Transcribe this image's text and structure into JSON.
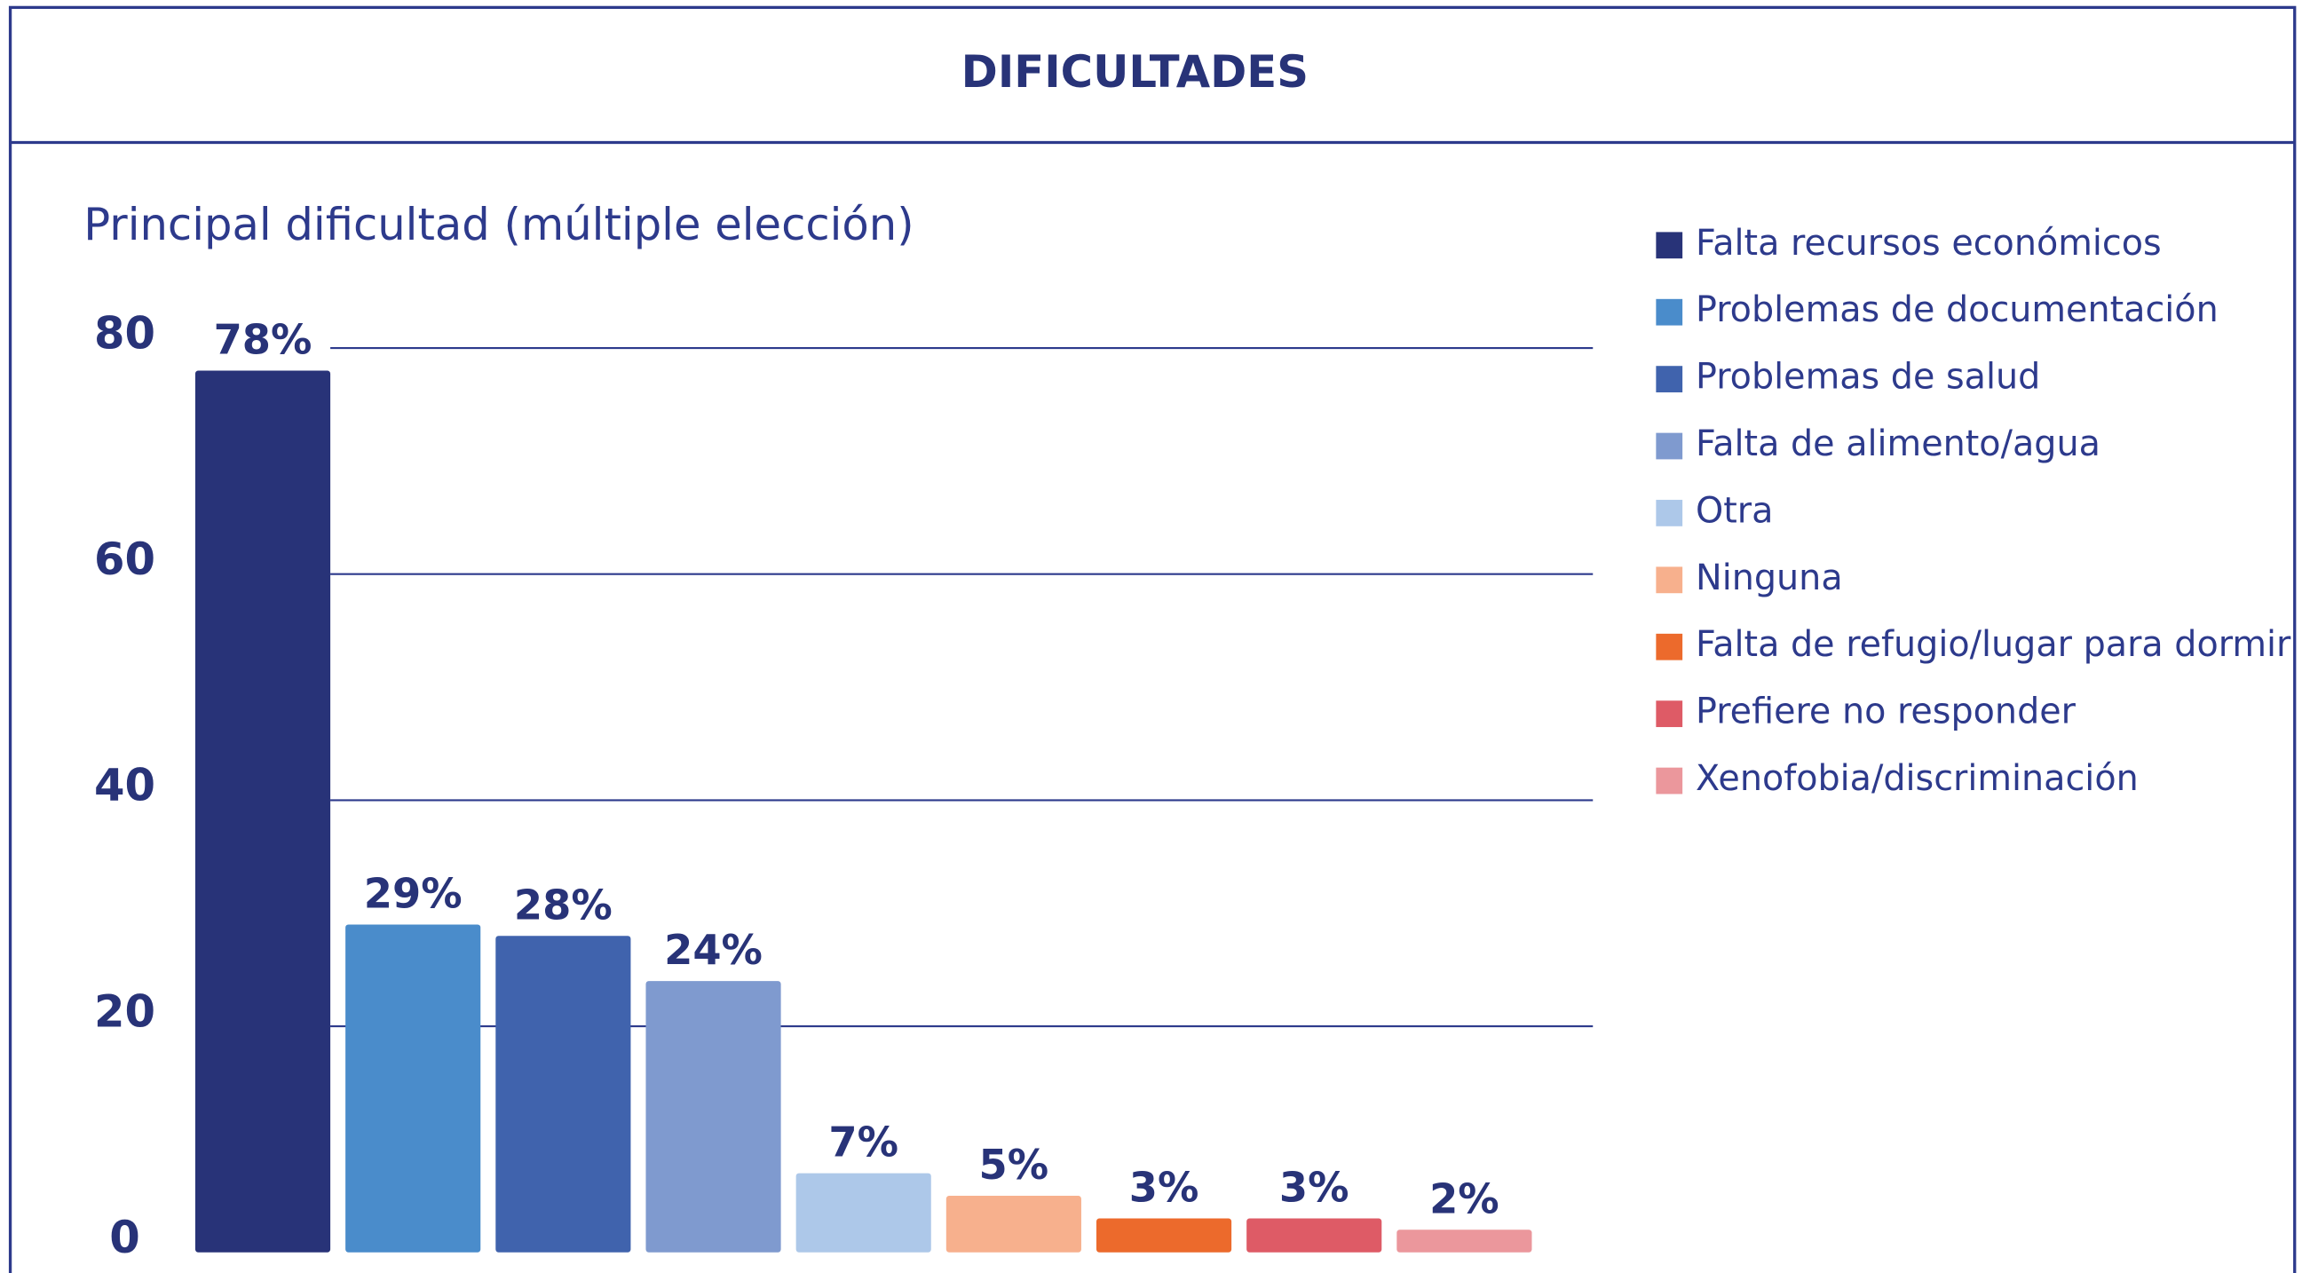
{
  "chart_data": {
    "type": "bar",
    "title": "DIFICULTADES",
    "subtitle": "Principal dificultad (múltiple elección)",
    "categories": [
      "Falta recursos económicos",
      "Problemas de documentación",
      "Problemas de salud",
      "Falta de alimento/agua",
      "Otra",
      "Ninguna",
      "Falta de refugio/lugar para dormir",
      "Prefiere no responder",
      "Xenofobia/discriminación"
    ],
    "values": [
      78,
      29,
      28,
      24,
      7,
      5,
      3,
      3,
      2
    ],
    "value_labels": [
      "78%",
      "29%",
      "28%",
      "24%",
      "7%",
      "5%",
      "3%",
      "3%",
      "2%"
    ],
    "colors": [
      "#283378",
      "#4a8ccb",
      "#4063ad",
      "#7f9acf",
      "#adc8e9",
      "#f7b08d",
      "#ec6a2c",
      "#de5b66",
      "#eb979c"
    ],
    "ylim": [
      0,
      80
    ],
    "yticks": [
      0,
      20,
      40,
      60,
      80
    ],
    "grid": true,
    "legend": "right"
  }
}
